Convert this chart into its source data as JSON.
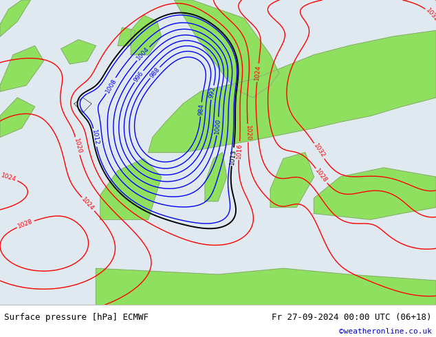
{
  "title_left": "Surface pressure [hPa] ECMWF",
  "title_right": "Fr 27-09-2024 00:00 UTC (06+18)",
  "copyright": "©weatheronline.co.uk",
  "copyright_color": "#0000cc",
  "land_color": "#90e060",
  "sea_color": "#e0e8f0",
  "footer_bg": "#ffffff",
  "text_color": "#000000",
  "blue_contour_color": "#0000ff",
  "red_contour_color": "#ff0000",
  "black_contour_color": "#000000",
  "figsize": [
    6.34,
    4.9
  ],
  "dpi": 100,
  "levels_blue": [
    984,
    988,
    992,
    996,
    1000,
    1004,
    1008,
    1012
  ],
  "levels_red": [
    1016,
    1020,
    1024,
    1028,
    1032
  ],
  "level_black": [
    1013
  ]
}
